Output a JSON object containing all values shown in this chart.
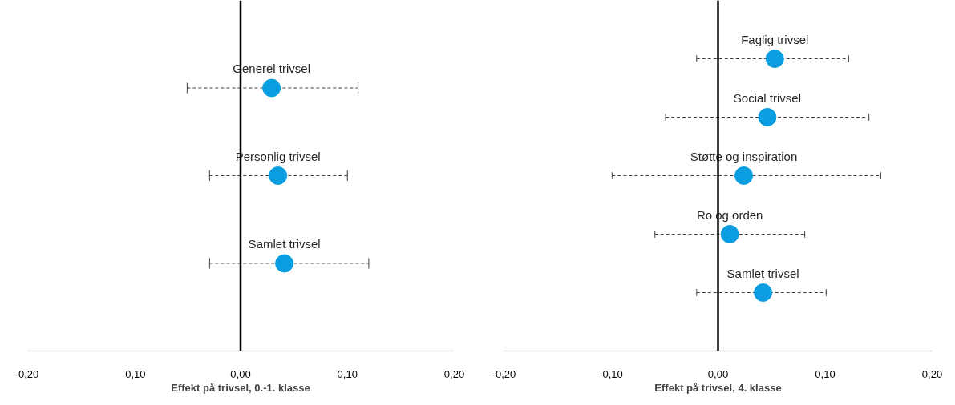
{
  "chart_data": [
    {
      "type": "scatter",
      "orientation": "horizontal",
      "marker": "circle",
      "color": "#0a9ee0",
      "tick_labels": "x",
      "grid": false,
      "categories": [
        "Generel trivsel",
        "Personlig trivsel",
        "Samlet trivsel"
      ],
      "values": [
        0.029,
        0.035,
        0.041
      ],
      "errors": [
        [
          -0.05,
          0.11
        ],
        [
          -0.029,
          0.1
        ],
        [
          -0.029,
          0.12
        ]
      ],
      "xlim": [
        -0.2,
        0.2
      ],
      "xticks": [
        {
          "value": -0.2,
          "label": "-0,20"
        },
        {
          "value": -0.1,
          "label": "-0,10"
        },
        {
          "value": 0,
          "label": "0,00"
        },
        {
          "value": 0.1,
          "label": "0,10"
        },
        {
          "value": 0.2,
          "label": "0,20"
        }
      ],
      "xlabel": "Effekt på trivsel, 0.-1. klasse",
      "ref_lines": [
        {
          "axis": "x",
          "value": 0,
          "color": "#000000"
        }
      ]
    },
    {
      "type": "scatter",
      "orientation": "horizontal",
      "marker": "circle",
      "color": "#0a9ee0",
      "tick_labels": "x",
      "grid": false,
      "categories": [
        "Faglig trivsel",
        "Social trivsel",
        "Støtte og inspiration",
        "Ro og orden",
        "Samlet trivsel"
      ],
      "values": [
        0.053,
        0.046,
        0.024,
        0.011,
        0.042
      ],
      "errors": [
        [
          -0.02,
          0.122
        ],
        [
          -0.049,
          0.141
        ],
        [
          -0.099,
          0.152
        ],
        [
          -0.059,
          0.081
        ],
        [
          -0.02,
          0.101
        ]
      ],
      "xlim": [
        -0.2,
        0.2
      ],
      "xticks": [
        {
          "value": -0.2,
          "label": "-0,20"
        },
        {
          "value": -0.1,
          "label": "-0,10"
        },
        {
          "value": 0,
          "label": "0,00"
        },
        {
          "value": 0.1,
          "label": "0,10"
        },
        {
          "value": 0.2,
          "label": "0,20"
        }
      ],
      "xlabel": "Effekt på trivsel, 4. klasse",
      "ref_lines": [
        {
          "axis": "x",
          "value": 0,
          "color": "#000000"
        }
      ]
    }
  ]
}
